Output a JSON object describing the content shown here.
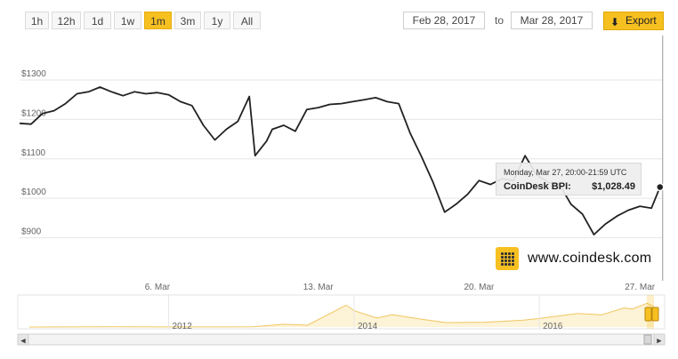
{
  "toolbar": {
    "range_buttons": [
      "1h",
      "12h",
      "1d",
      "1w",
      "1m",
      "3m",
      "1y",
      "All"
    ],
    "active_range": "1m",
    "from_date": "Feb 28, 2017",
    "to_label": "to",
    "to_date": "Mar 28, 2017",
    "export_label": "Export"
  },
  "tooltip": {
    "date": "Monday, Mar 27, 20:00-21:59 UTC",
    "series_name": "CoinDesk BPI:",
    "value": "$1,028.49"
  },
  "brand": {
    "name": "www.coindesk.com"
  },
  "colors": {
    "line": "#222222",
    "accent": "#f7c021",
    "navigator_fill": "#fdf3d6",
    "navigator_line": "#f0c660"
  },
  "chart_data": {
    "type": "line",
    "title": "",
    "xlabel": "",
    "ylabel": "",
    "grid": true,
    "y_ticks": [
      "$900",
      "$1000",
      "$1100",
      "$1200",
      "$1300"
    ],
    "x_ticks": [
      "6. Mar",
      "13. Mar",
      "20. Mar",
      "27. Mar"
    ],
    "ylim": [
      800,
      1390
    ],
    "xlim": [
      "2017-02-28",
      "2017-03-28"
    ],
    "highlighted_point": {
      "x": "2017-03-27 21:00",
      "y": 1028.49
    },
    "series": [
      {
        "values": [
          [
            "2017-02-28 00:00",
            1190
          ],
          [
            "2017-02-28 12:00",
            1188
          ],
          [
            "2017-03-01 00:00",
            1215
          ],
          [
            "2017-03-01 12:00",
            1222
          ],
          [
            "2017-03-02 00:00",
            1240
          ],
          [
            "2017-03-02 12:00",
            1265
          ],
          [
            "2017-03-03 00:00",
            1270
          ],
          [
            "2017-03-03 12:00",
            1282
          ],
          [
            "2017-03-04 00:00",
            1270
          ],
          [
            "2017-03-04 12:00",
            1260
          ],
          [
            "2017-03-05 00:00",
            1270
          ],
          [
            "2017-03-05 12:00",
            1265
          ],
          [
            "2017-03-06 00:00",
            1268
          ],
          [
            "2017-03-06 12:00",
            1262
          ],
          [
            "2017-03-07 00:00",
            1245
          ],
          [
            "2017-03-07 12:00",
            1235
          ],
          [
            "2017-03-08 00:00",
            1185
          ],
          [
            "2017-03-08 12:00",
            1148
          ],
          [
            "2017-03-09 00:00",
            1175
          ],
          [
            "2017-03-09 12:00",
            1195
          ],
          [
            "2017-03-10 00:00",
            1258
          ],
          [
            "2017-03-10 06:00",
            1108
          ],
          [
            "2017-03-10 18:00",
            1145
          ],
          [
            "2017-03-11 00:00",
            1175
          ],
          [
            "2017-03-11 12:00",
            1185
          ],
          [
            "2017-03-12 00:00",
            1170
          ],
          [
            "2017-03-12 12:00",
            1225
          ],
          [
            "2017-03-13 00:00",
            1230
          ],
          [
            "2017-03-13 12:00",
            1238
          ],
          [
            "2017-03-14 00:00",
            1240
          ],
          [
            "2017-03-14 12:00",
            1245
          ],
          [
            "2017-03-15 00:00",
            1250
          ],
          [
            "2017-03-15 12:00",
            1255
          ],
          [
            "2017-03-16 00:00",
            1245
          ],
          [
            "2017-03-16 12:00",
            1240
          ],
          [
            "2017-03-17 00:00",
            1165
          ],
          [
            "2017-03-17 12:00",
            1105
          ],
          [
            "2017-03-18 00:00",
            1040
          ],
          [
            "2017-03-18 12:00",
            965
          ],
          [
            "2017-03-19 00:00",
            985
          ],
          [
            "2017-03-19 12:00",
            1010
          ],
          [
            "2017-03-20 00:00",
            1045
          ],
          [
            "2017-03-20 12:00",
            1035
          ],
          [
            "2017-03-21 00:00",
            1050
          ],
          [
            "2017-03-21 12:00",
            1045
          ],
          [
            "2017-03-22 00:00",
            1108
          ],
          [
            "2017-03-22 12:00",
            1060
          ],
          [
            "2017-03-23 00:00",
            1040
          ],
          [
            "2017-03-23 12:00",
            1035
          ],
          [
            "2017-03-24 00:00",
            985
          ],
          [
            "2017-03-24 12:00",
            960
          ],
          [
            "2017-03-25 00:00",
            908
          ],
          [
            "2017-03-25 12:00",
            935
          ],
          [
            "2017-03-26 00:00",
            955
          ],
          [
            "2017-03-26 12:00",
            970
          ],
          [
            "2017-03-27 00:00",
            980
          ],
          [
            "2017-03-27 12:00",
            975
          ],
          [
            "2017-03-27 21:00",
            1028.49
          ],
          [
            "2017-03-28 00:00",
            1032
          ]
        ]
      }
    ],
    "navigator": {
      "x_ticks": [
        "2012",
        "2014",
        "2016"
      ],
      "values": [
        [
          "2010-07",
          0.1
        ],
        [
          "2011-06",
          15
        ],
        [
          "2011-12",
          3
        ],
        [
          "2012-06",
          6
        ],
        [
          "2012-12",
          13
        ],
        [
          "2013-04",
          140
        ],
        [
          "2013-07",
          90
        ],
        [
          "2013-11",
          900
        ],
        [
          "2013-12",
          1100
        ],
        [
          "2014-01",
          820
        ],
        [
          "2014-04",
          450
        ],
        [
          "2014-06",
          620
        ],
        [
          "2014-10",
          380
        ],
        [
          "2015-01",
          220
        ],
        [
          "2015-06",
          240
        ],
        [
          "2015-11",
          350
        ],
        [
          "2016-01",
          430
        ],
        [
          "2016-06",
          680
        ],
        [
          "2016-09",
          610
        ],
        [
          "2016-12",
          960
        ],
        [
          "2017-01",
          900
        ],
        [
          "2017-03",
          1190
        ],
        [
          "2017-03-28",
          1030
        ]
      ]
    }
  }
}
